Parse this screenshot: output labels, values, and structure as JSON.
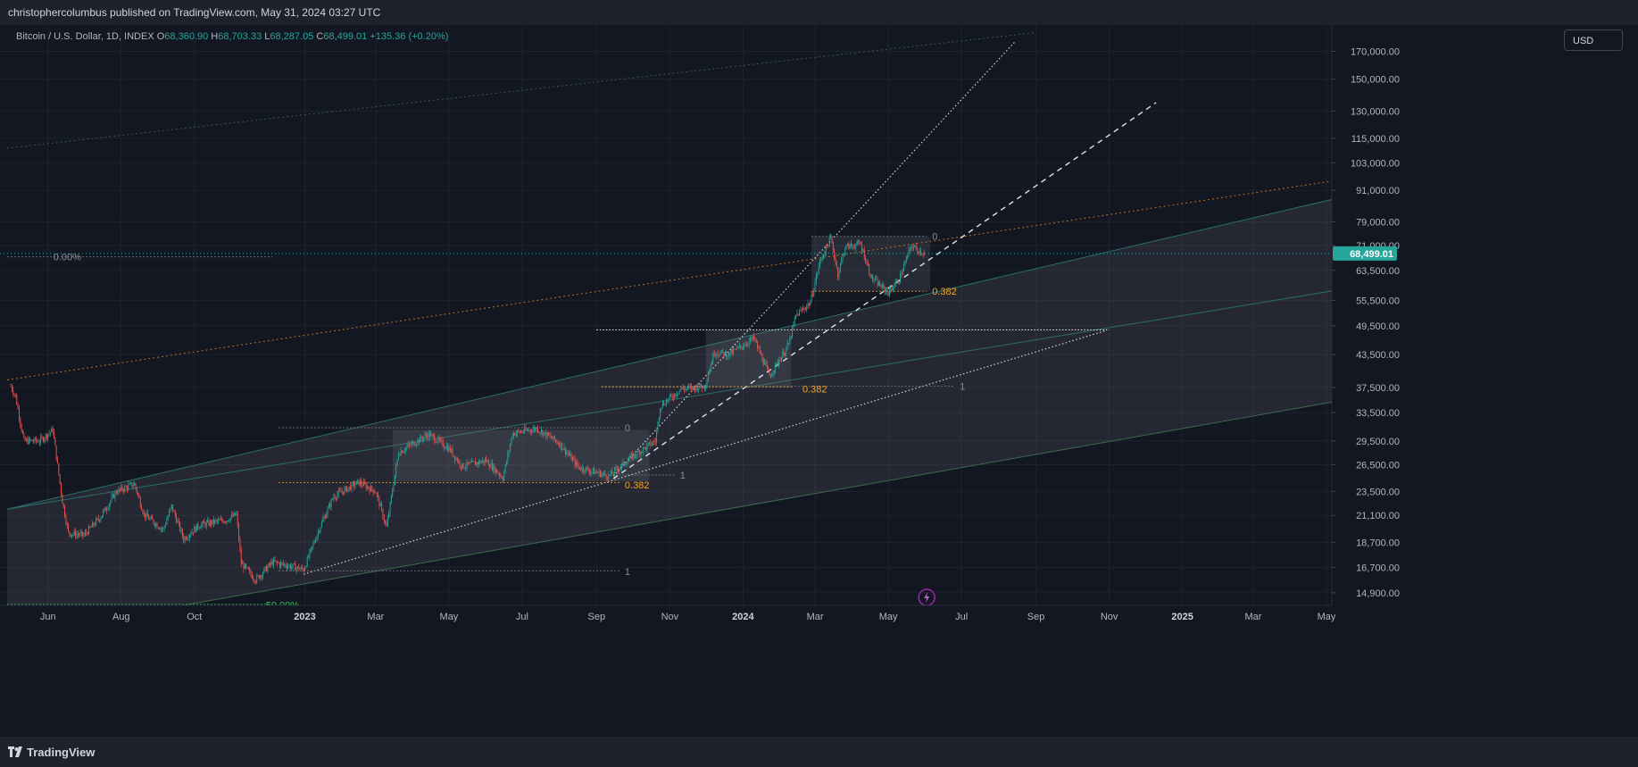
{
  "header": {
    "published": "christophercolumbus published on TradingView.com, May 31, 2024 03:27 UTC"
  },
  "legend": {
    "symbol": "Bitcoin / U.S. Dollar, 1D, INDEX",
    "open_label": "O",
    "open": "68,360.90",
    "high_label": "H",
    "high": "68,703.33",
    "low_label": "L",
    "low": "68,287.05",
    "close_label": "C",
    "close": "68,499.01",
    "change": "+135.36 (+0.20%)"
  },
  "currency_button": "USD",
  "footer": {
    "brand": "TradingView"
  },
  "colors": {
    "background": "#131722",
    "up": "#26a69a",
    "down": "#ef5350",
    "fib": "#f5a623",
    "price_label": "#26a69a"
  },
  "chart_data": {
    "type": "candlestick",
    "interval": "1D",
    "y_scale": "log",
    "y_ticks": [
      "170,000.00",
      "150,000.00",
      "130,000.00",
      "115,000.00",
      "103,000.00",
      "91,000.00",
      "79,000.00",
      "71,000.00",
      "63,500.00",
      "55,500.00",
      "49,500.00",
      "43,500.00",
      "37,500.00",
      "33,500.00",
      "29,500.00",
      "26,500.00",
      "23,500.00",
      "21,100.00",
      "18,700.00",
      "16,700.00",
      "14,900.00"
    ],
    "y_tick_values": [
      170000,
      150000,
      130000,
      115000,
      103000,
      91000,
      79000,
      71000,
      63500,
      55500,
      49500,
      43500,
      37500,
      33500,
      29500,
      26500,
      23500,
      21100,
      18700,
      16700,
      14900
    ],
    "x_ticks": [
      {
        "label": "Jun",
        "date": "2022-06-01",
        "bold": false
      },
      {
        "label": "Aug",
        "date": "2022-08-01",
        "bold": false
      },
      {
        "label": "Oct",
        "date": "2022-10-01",
        "bold": false
      },
      {
        "label": "2023",
        "date": "2023-01-01",
        "bold": true
      },
      {
        "label": "Mar",
        "date": "2023-03-01",
        "bold": false
      },
      {
        "label": "May",
        "date": "2023-05-01",
        "bold": false
      },
      {
        "label": "Jul",
        "date": "2023-07-01",
        "bold": false
      },
      {
        "label": "Sep",
        "date": "2023-09-01",
        "bold": false
      },
      {
        "label": "Nov",
        "date": "2023-11-01",
        "bold": false
      },
      {
        "label": "2024",
        "date": "2024-01-01",
        "bold": true
      },
      {
        "label": "Mar",
        "date": "2024-03-01",
        "bold": false
      },
      {
        "label": "May",
        "date": "2024-05-01",
        "bold": false
      },
      {
        "label": "Jul",
        "date": "2024-07-01",
        "bold": false
      },
      {
        "label": "Sep",
        "date": "2024-09-01",
        "bold": false
      },
      {
        "label": "Nov",
        "date": "2024-11-01",
        "bold": false
      },
      {
        "label": "2025",
        "date": "2025-01-01",
        "bold": true
      },
      {
        "label": "Mar",
        "date": "2025-03-01",
        "bold": false
      },
      {
        "label": "May",
        "date": "2025-05-01",
        "bold": false
      }
    ],
    "last_price": "68,499.01",
    "last_price_value": 68499.01,
    "price_path": [
      [
        "2022-05-01",
        37800
      ],
      [
        "2022-05-05",
        36000
      ],
      [
        "2022-05-12",
        29500
      ],
      [
        "2022-05-25",
        29500
      ],
      [
        "2022-06-05",
        31000
      ],
      [
        "2022-06-13",
        22500
      ],
      [
        "2022-06-18",
        19500
      ],
      [
        "2022-07-01",
        19300
      ],
      [
        "2022-07-15",
        21000
      ],
      [
        "2022-07-28",
        23500
      ],
      [
        "2022-08-12",
        24300
      ],
      [
        "2022-08-20",
        21200
      ],
      [
        "2022-09-05",
        19800
      ],
      [
        "2022-09-12",
        22000
      ],
      [
        "2022-09-22",
        19000
      ],
      [
        "2022-10-05",
        20200
      ],
      [
        "2022-10-28",
        20700
      ],
      [
        "2022-11-05",
        21200
      ],
      [
        "2022-11-09",
        17000
      ],
      [
        "2022-11-21",
        15800
      ],
      [
        "2022-12-05",
        17100
      ],
      [
        "2022-12-20",
        16800
      ],
      [
        "2022-12-31",
        16550
      ],
      [
        "2023-01-13",
        19900
      ],
      [
        "2023-01-25",
        23000
      ],
      [
        "2023-02-15",
        24500
      ],
      [
        "2023-03-01",
        23500
      ],
      [
        "2023-03-10",
        20000
      ],
      [
        "2023-03-20",
        28000
      ],
      [
        "2023-04-14",
        30400
      ],
      [
        "2023-05-01",
        28500
      ],
      [
        "2023-05-12",
        26300
      ],
      [
        "2023-06-01",
        27000
      ],
      [
        "2023-06-15",
        25000
      ],
      [
        "2023-06-23",
        30500
      ],
      [
        "2023-07-13",
        31200
      ],
      [
        "2023-08-01",
        29200
      ],
      [
        "2023-08-17",
        26200
      ],
      [
        "2023-09-11",
        25200
      ],
      [
        "2023-10-01",
        27500
      ],
      [
        "2023-10-20",
        29500
      ],
      [
        "2023-10-24",
        34500
      ],
      [
        "2023-11-10",
        37200
      ],
      [
        "2023-11-30",
        37700
      ],
      [
        "2023-12-08",
        44000
      ],
      [
        "2023-12-20",
        43500
      ],
      [
        "2024-01-10",
        46800
      ],
      [
        "2024-01-23",
        39500
      ],
      [
        "2024-02-08",
        45500
      ],
      [
        "2024-02-14",
        51800
      ],
      [
        "2024-02-26",
        55000
      ],
      [
        "2024-03-05",
        66000
      ],
      [
        "2024-03-14",
        73500
      ],
      [
        "2024-03-20",
        62500
      ],
      [
        "2024-03-26",
        70500
      ],
      [
        "2024-04-08",
        71500
      ],
      [
        "2024-04-17",
        61300
      ],
      [
        "2024-05-01",
        57500
      ],
      [
        "2024-05-10",
        61000
      ],
      [
        "2024-05-20",
        70800
      ],
      [
        "2024-05-31",
        68499
      ]
    ],
    "drawings": {
      "channel_upper": {
        "p1": [
          "2022-04-28",
          21700
        ],
        "p2": [
          "2024-07-12",
          60000
        ]
      },
      "channel_lower": {
        "p1": [
          "2022-09-30",
          14200
        ],
        "p2": [
          "2025-06-15",
          36500
        ]
      },
      "outer_green_line": {
        "p1": [
          "2022-04-28",
          110000
        ],
        "p2": [
          "2024-09-01",
          185000
        ]
      },
      "orange_trend_line": {
        "p1": [
          "2022-04-28",
          38800
        ],
        "p2": [
          "2025-06-15",
          98000
        ]
      },
      "white_trend_dotted": {
        "p1": [
          "2022-12-31",
          16200
        ],
        "p2": [
          "2024-10-30",
          48500
        ]
      },
      "white_trend_steep": {
        "p1": [
          "2023-09-15",
          25200
        ],
        "p2": [
          "2024-08-15",
          178000
        ]
      },
      "white_trend_dashed": {
        "p1": [
          "2023-09-15",
          24900
        ],
        "p2": [
          "2024-12-10",
          135000
        ]
      },
      "horizontal_dotted": {
        "from": "2023-09-01",
        "to": "2024-11-01",
        "price": 48600
      }
    },
    "annotations": [
      {
        "label": "0.00%",
        "date": "2022-06-01",
        "price": 67500
      },
      {
        "label": "50.00%",
        "date": "2022-11-25",
        "price": 14100
      },
      {
        "label": "0",
        "date": "2023-09-20",
        "price": 31300
      },
      {
        "label": "1",
        "date": "2023-11-05",
        "price": 25300
      },
      {
        "label": "0.382",
        "date": "2023-09-20",
        "price": 24200
      },
      {
        "label": "1",
        "date": "2023-09-20",
        "price": 16400
      },
      {
        "label": "0.382",
        "date": "2024-02-15",
        "price": 37300
      },
      {
        "label": "1",
        "date": "2024-06-25",
        "price": 37700
      },
      {
        "label": "0",
        "date": "2024-06-02",
        "price": 74000
      },
      {
        "label": "0.382",
        "date": "2024-06-02",
        "price": 57800
      }
    ]
  }
}
